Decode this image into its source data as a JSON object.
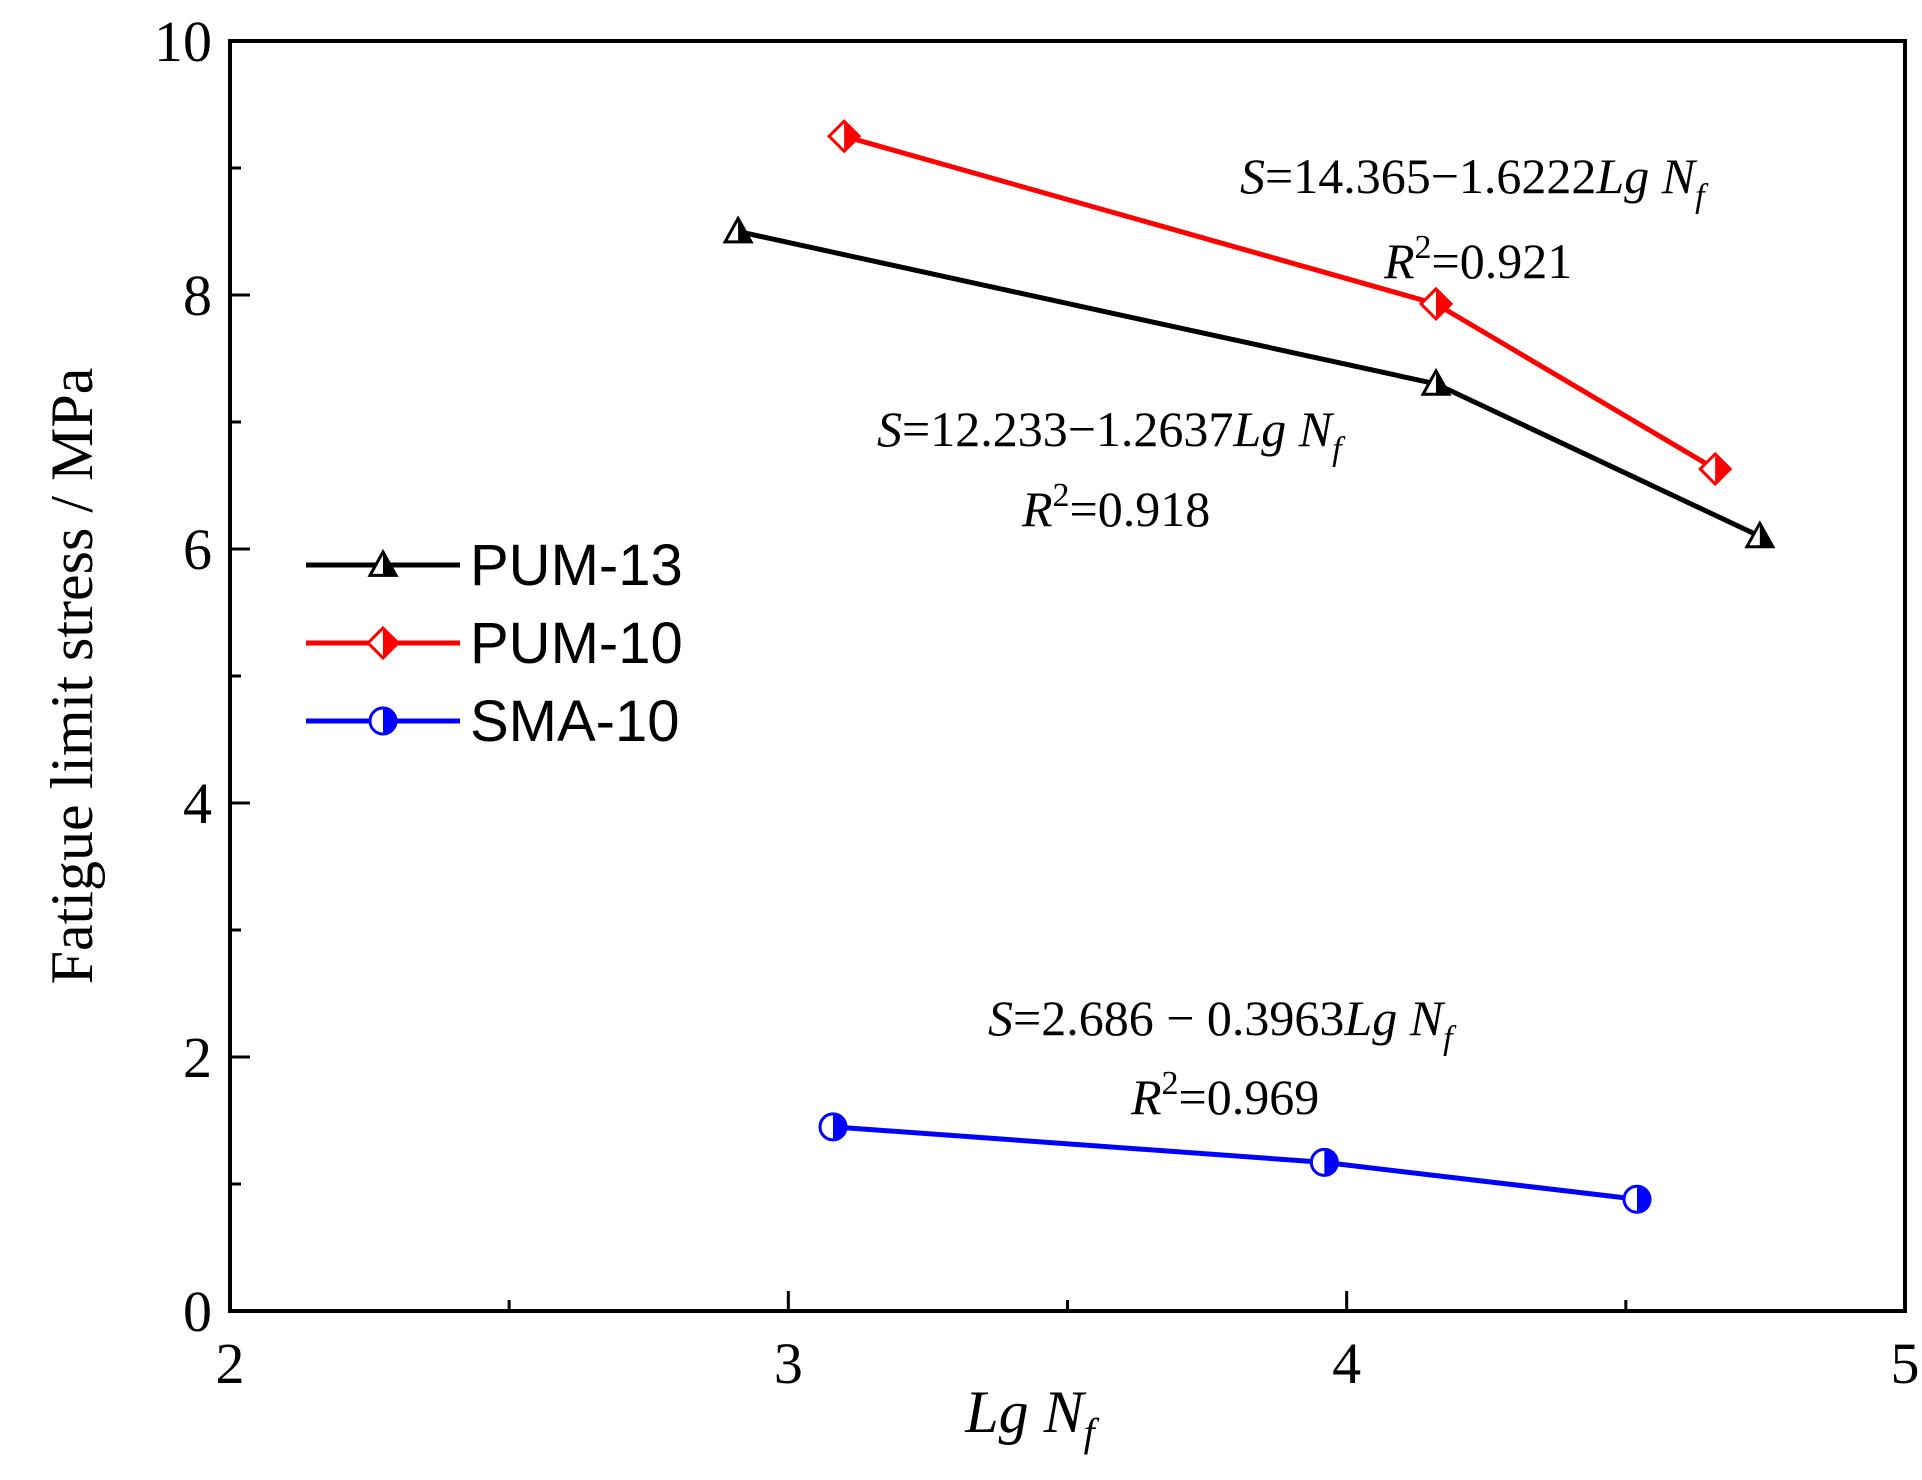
{
  "chart_data": {
    "type": "line",
    "xlabel": "Lg N",
    "xlabel_sub": "f",
    "ylabel": "Fatigue limit stress / MPa",
    "xlim": [
      2,
      5
    ],
    "ylim": [
      0,
      10
    ],
    "x_ticks": [
      "2",
      "3",
      "4",
      "5"
    ],
    "y_ticks": [
      "0",
      "2",
      "4",
      "6",
      "8",
      "10"
    ],
    "legend_position": "middle-left",
    "series": [
      {
        "name": "PUM-13",
        "color": "#000000",
        "marker": "triangle-half",
        "points": [
          [
            2.91,
            8.5
          ],
          [
            4.16,
            7.3
          ],
          [
            4.74,
            6.1
          ]
        ]
      },
      {
        "name": "PUM-10",
        "color": "#ff0000",
        "marker": "diamond-half",
        "points": [
          [
            3.1,
            9.25
          ],
          [
            4.16,
            7.93
          ],
          [
            4.66,
            6.63
          ]
        ]
      },
      {
        "name": "SMA-10",
        "color": "#0000ff",
        "marker": "circle-half",
        "points": [
          [
            3.08,
            1.45
          ],
          [
            3.96,
            1.17
          ],
          [
            4.52,
            0.88
          ]
        ]
      }
    ],
    "annotations": [
      {
        "id": "pum10",
        "equation": {
          "S": "S",
          "rest": "=14.365−1.6222",
          "lg": "Lg N",
          "sub": "f"
        },
        "r2": {
          "R": "R",
          "sup": "2",
          "rest": "=0.921"
        }
      },
      {
        "id": "pum13",
        "equation": {
          "S": "S",
          "rest": "=12.233−1.2637",
          "lg": "Lg N",
          "sub": "f"
        },
        "r2": {
          "R": "R",
          "sup": "2",
          "rest": "=0.918"
        }
      },
      {
        "id": "sma10",
        "equation": {
          "S": "S",
          "rest": "=2.686 − 0.3963",
          "lg": "Lg N",
          "sub": "f"
        },
        "r2": {
          "R": "R",
          "sup": "2",
          "rest": "=0.969"
        }
      }
    ]
  }
}
